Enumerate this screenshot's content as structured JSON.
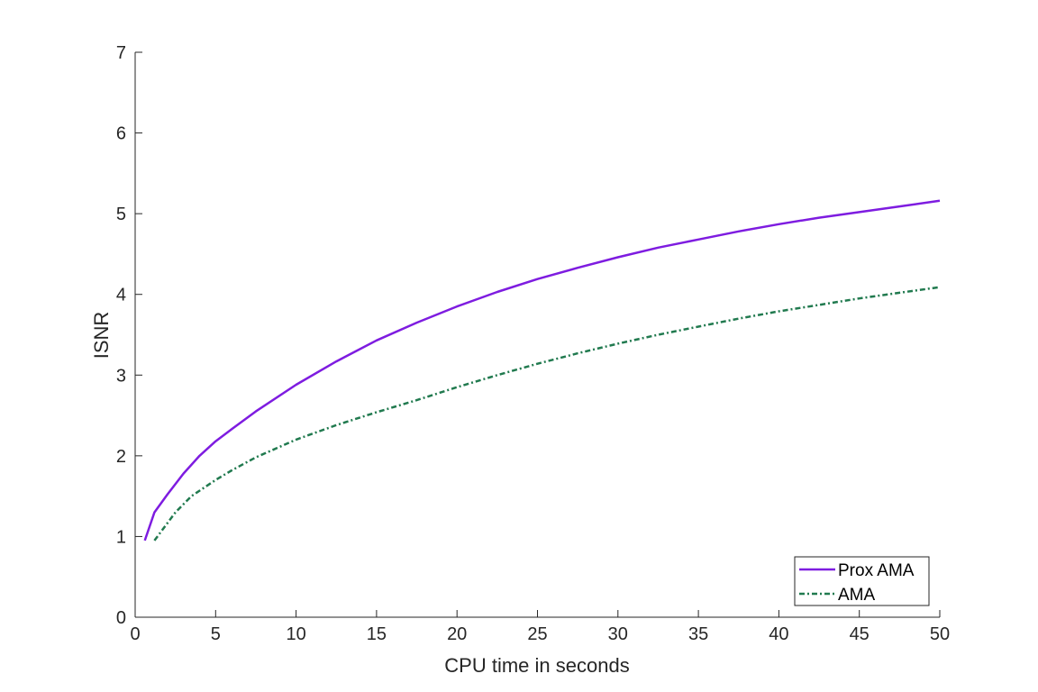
{
  "chart_data": {
    "type": "line",
    "title": "",
    "xlabel": "CPU time in seconds",
    "ylabel": "ISNR",
    "xlim": [
      0,
      50
    ],
    "ylim": [
      0,
      7
    ],
    "xticks": [
      0,
      5,
      10,
      15,
      20,
      25,
      30,
      35,
      40,
      45,
      50
    ],
    "yticks": [
      0,
      1,
      2,
      3,
      4,
      5,
      6,
      7
    ],
    "grid": false,
    "legend": "bottom-right",
    "series": [
      {
        "name": "Prox AMA",
        "color": "#7e1ce0",
        "style": "solid",
        "x": [
          0.6,
          1.2,
          2.0,
          3.0,
          4.0,
          5.0,
          6.0,
          7.5,
          10,
          12.5,
          15,
          17.5,
          20,
          22.5,
          25,
          27.5,
          30,
          32.5,
          35,
          37.5,
          40,
          42.5,
          45,
          47.5,
          50
        ],
        "y": [
          0.95,
          1.3,
          1.52,
          1.78,
          2.0,
          2.18,
          2.33,
          2.55,
          2.88,
          3.17,
          3.43,
          3.65,
          3.85,
          4.03,
          4.19,
          4.33,
          4.46,
          4.58,
          4.68,
          4.78,
          4.87,
          4.95,
          5.02,
          5.09,
          5.16
        ]
      },
      {
        "name": "AMA",
        "color": "#217a4f",
        "style": "dashdot",
        "x": [
          1.2,
          2.5,
          3.5,
          5.0,
          6.0,
          7.5,
          10,
          12.5,
          15,
          17.5,
          20,
          22.5,
          25,
          27.5,
          30,
          32.5,
          35,
          37.5,
          40,
          42.5,
          45,
          47.5,
          50
        ],
        "y": [
          0.95,
          1.3,
          1.5,
          1.7,
          1.82,
          1.98,
          2.2,
          2.38,
          2.54,
          2.69,
          2.85,
          3.0,
          3.14,
          3.27,
          3.39,
          3.5,
          3.6,
          3.7,
          3.79,
          3.87,
          3.95,
          4.02,
          4.09
        ]
      }
    ]
  }
}
